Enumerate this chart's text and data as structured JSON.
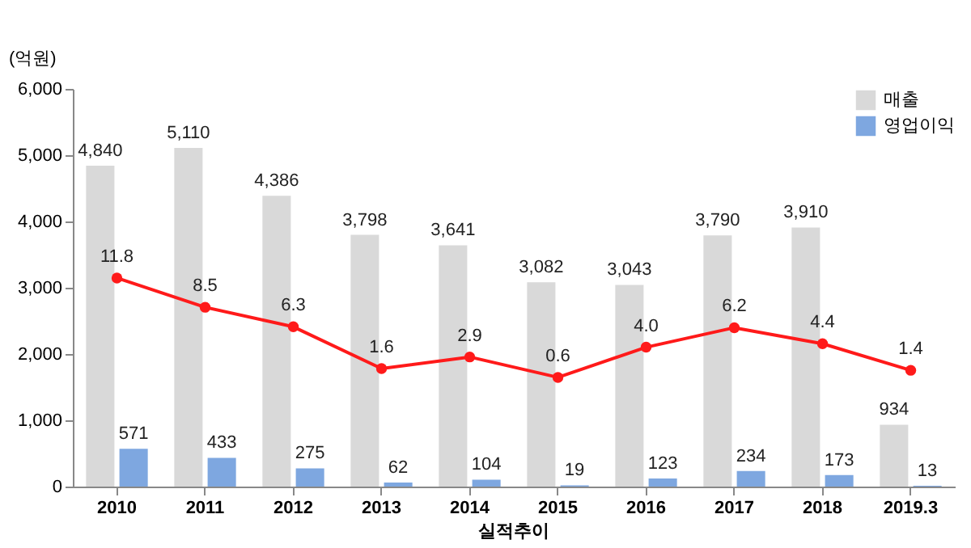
{
  "chart_data": {
    "type": "bar",
    "ylabel": "(억원)",
    "annotations": [
      "실적추이"
    ],
    "categories": [
      "2010",
      "2011",
      "2012",
      "2013",
      "2014",
      "2015",
      "2016",
      "2017",
      "2018",
      "2019.3"
    ],
    "series": [
      {
        "name": "매출",
        "color": "#d9d9d9",
        "values": [
          4840,
          5110,
          4386,
          3798,
          3641,
          3082,
          3043,
          3790,
          3910,
          934
        ],
        "value_labels": [
          "4,840",
          "5,110",
          "4,386",
          "3,798",
          "3,641",
          "3,082",
          "3,043",
          "3,790",
          "3,910",
          "934"
        ]
      },
      {
        "name": "영업이익",
        "color": "#7ea7e0",
        "values": [
          571,
          433,
          275,
          62,
          104,
          19,
          123,
          234,
          173,
          13
        ],
        "value_labels": [
          "571",
          "433",
          "275",
          "62",
          "104",
          "19",
          "123",
          "234",
          "173",
          "13"
        ]
      },
      {
        "type": "line",
        "axis": "y2",
        "color": "#ff1a1a",
        "marker": "circle",
        "line_style": "solid",
        "values": [
          11.8,
          8.5,
          6.3,
          1.6,
          2.9,
          0.6,
          4.0,
          6.2,
          4.4,
          1.4
        ],
        "value_labels": [
          "11.8",
          "8.5",
          "6.3",
          "1.6",
          "2.9",
          "0.6",
          "4.0",
          "6.2",
          "4.4",
          "1.4"
        ]
      }
    ],
    "ylim": [
      0,
      6000
    ],
    "yticks": [
      {
        "value": 0,
        "label": "0"
      },
      {
        "value": 1000,
        "label": "1,000"
      },
      {
        "value": 2000,
        "label": "2,000"
      },
      {
        "value": 3000,
        "label": "3,000"
      },
      {
        "value": 4000,
        "label": "4,000"
      },
      {
        "value": 5000,
        "label": "5,000"
      },
      {
        "value": 6000,
        "label": "6,000"
      }
    ],
    "y2lim": [
      -11.7,
      33.1
    ],
    "grid": false,
    "legend": "top right"
  }
}
